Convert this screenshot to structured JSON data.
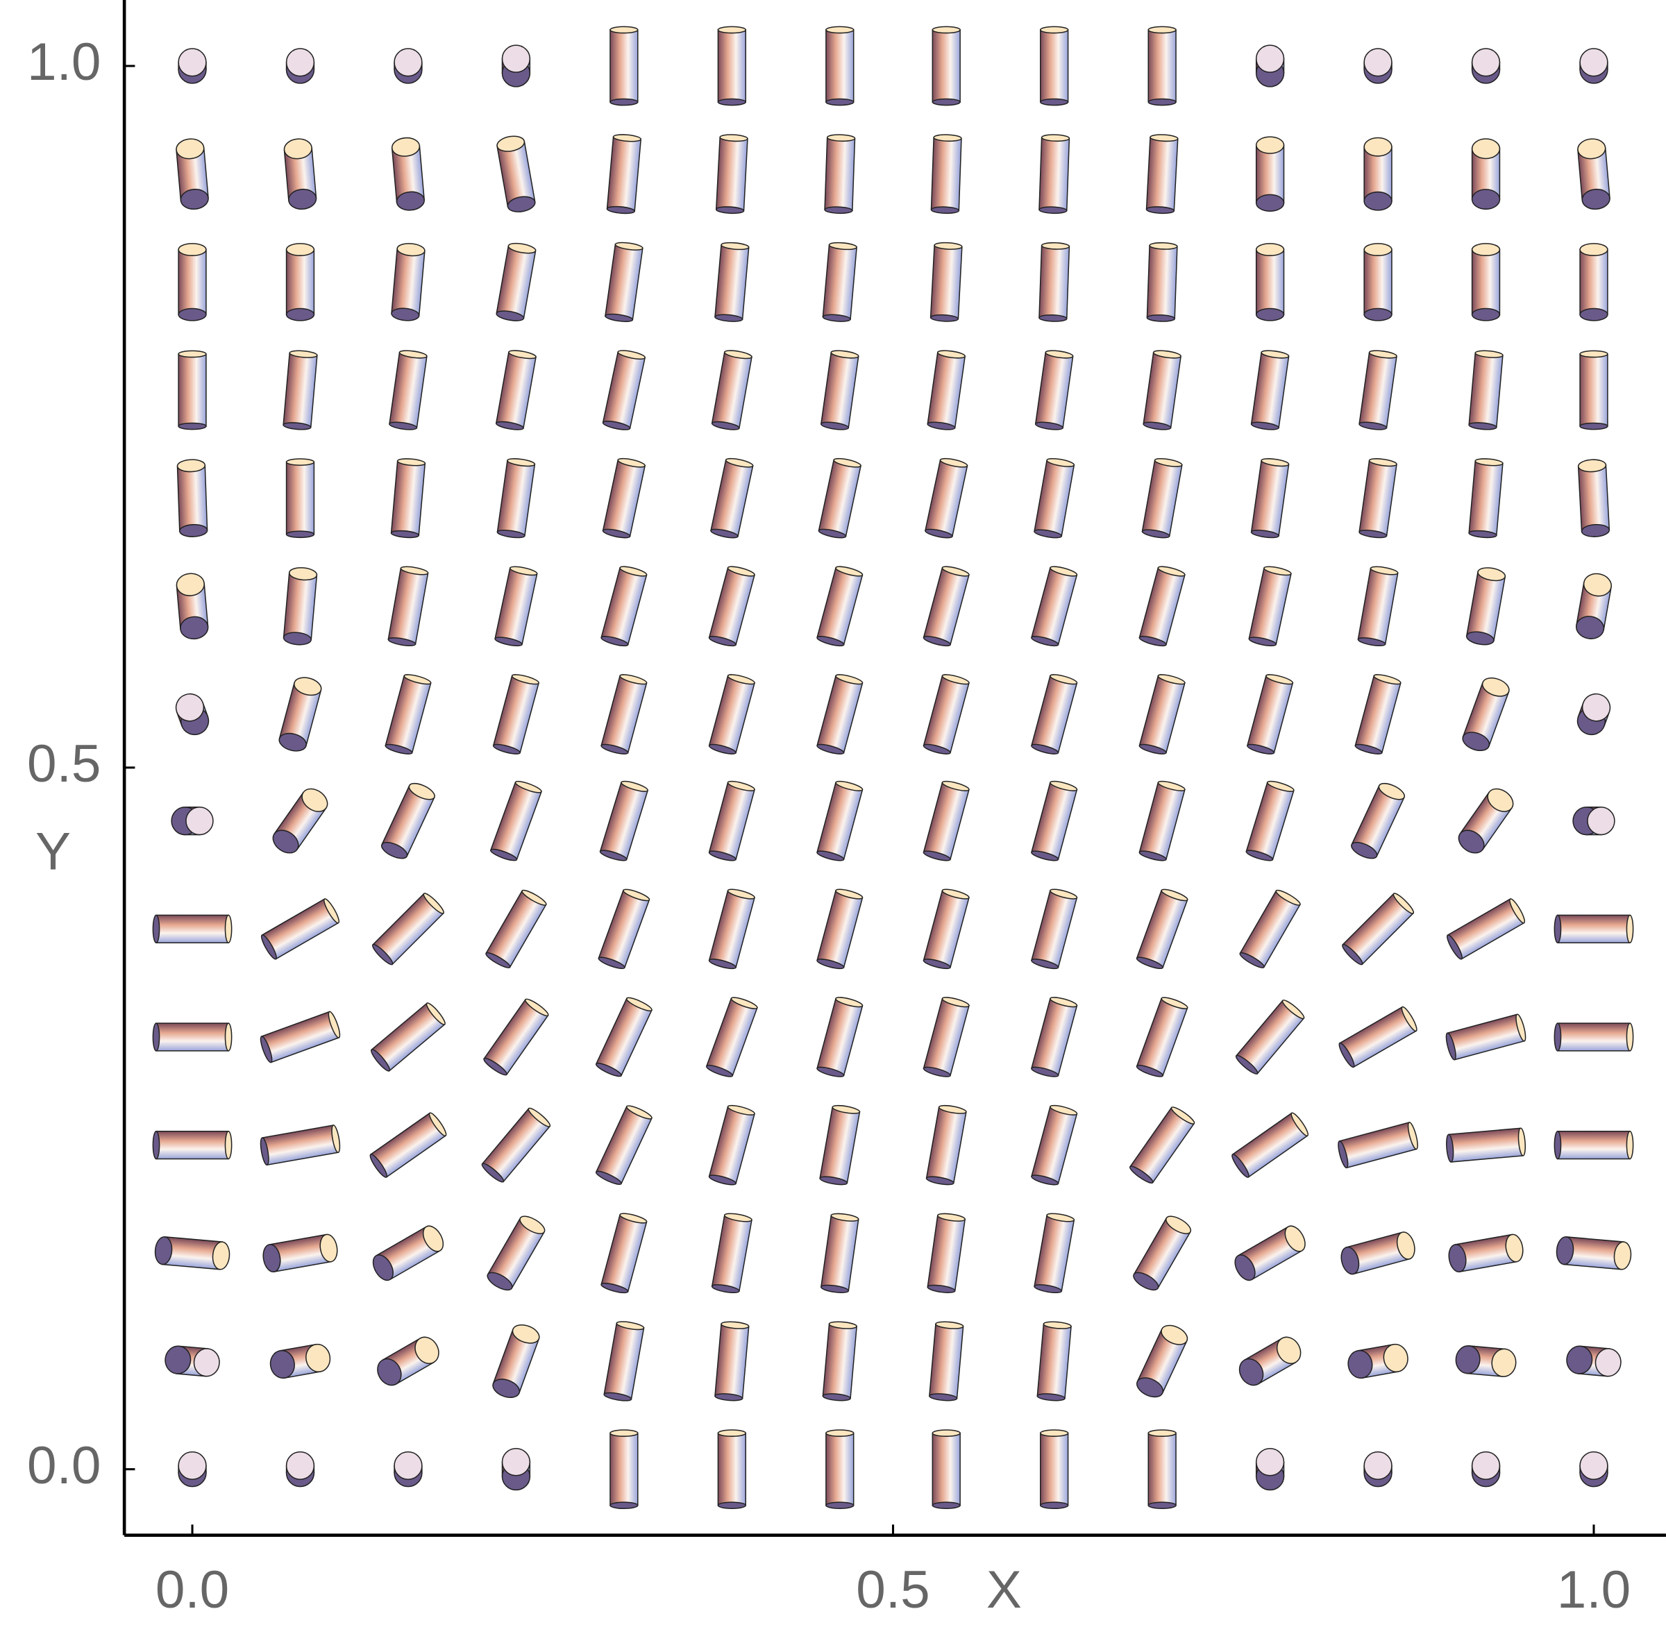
{
  "chart_data": {
    "type": "cylinder-field",
    "xlabel": "X",
    "ylabel": "Y",
    "x": [
      0,
      0.077,
      0.154,
      0.231,
      0.308,
      0.385,
      0.462,
      0.538,
      0.615,
      0.692,
      0.769,
      0.846,
      0.923,
      1
    ],
    "y": [
      0,
      0.077,
      0.154,
      0.231,
      0.308,
      0.385,
      0.462,
      0.538,
      0.615,
      0.692,
      0.769,
      0.846,
      0.923,
      1
    ],
    "angles": [
      [
        0,
        0,
        0,
        0,
        0,
        0,
        0,
        0,
        0,
        0,
        0,
        0,
        0,
        0
      ],
      [
        95,
        80,
        60,
        20,
        10,
        5,
        5,
        5,
        5,
        25,
        60,
        80,
        95,
        95
      ],
      [
        95,
        80,
        60,
        30,
        15,
        10,
        8,
        8,
        10,
        30,
        60,
        75,
        80,
        95
      ],
      [
        90,
        80,
        55,
        40,
        25,
        15,
        10,
        10,
        15,
        35,
        55,
        75,
        85,
        90
      ],
      [
        90,
        70,
        50,
        35,
        25,
        20,
        15,
        15,
        15,
        20,
        40,
        60,
        75,
        90
      ],
      [
        90,
        60,
        45,
        30,
        20,
        15,
        15,
        15,
        15,
        20,
        30,
        45,
        60,
        90
      ],
      [
        90,
        35,
        25,
        20,
        17,
        15,
        15,
        15,
        15,
        15,
        17,
        25,
        35,
        90
      ],
      [
        -20,
        15,
        15,
        15,
        15,
        15,
        15,
        15,
        15,
        15,
        15,
        15,
        20,
        20
      ],
      [
        -5,
        5,
        10,
        12,
        15,
        15,
        15,
        15,
        15,
        15,
        12,
        10,
        10,
        10
      ],
      [
        -2,
        0,
        5,
        8,
        12,
        12,
        12,
        12,
        10,
        10,
        8,
        8,
        5,
        -3
      ],
      [
        0,
        5,
        8,
        10,
        12,
        10,
        8,
        8,
        8,
        8,
        8,
        8,
        5,
        0
      ],
      [
        0,
        0,
        5,
        10,
        8,
        5,
        5,
        3,
        2,
        2,
        0,
        0,
        0,
        0
      ],
      [
        -5,
        -5,
        -5,
        -10,
        5,
        3,
        2,
        2,
        2,
        3,
        0,
        0,
        0,
        -5
      ],
      [
        0,
        0,
        0,
        0,
        0,
        0,
        0,
        0,
        0,
        0,
        0,
        0,
        0,
        0
      ]
    ],
    "lengths": [
      [
        0.1,
        0.1,
        0.1,
        0.2,
        1,
        1,
        1,
        1,
        1,
        1,
        0.2,
        0.1,
        0.1,
        0.1
      ],
      [
        0.4,
        0.5,
        0.6,
        0.8,
        1,
        1,
        1,
        1,
        1,
        0.8,
        0.6,
        0.5,
        0.5,
        0.4
      ],
      [
        0.8,
        0.8,
        0.8,
        0.9,
        1,
        1,
        1,
        1,
        1,
        0.9,
        0.8,
        0.8,
        0.8,
        0.8
      ],
      [
        1,
        1,
        1,
        1,
        1,
        1,
        1,
        1,
        1,
        1,
        1,
        1,
        1,
        1
      ],
      [
        1,
        1,
        1,
        1,
        1,
        1,
        1,
        1,
        1,
        1,
        1,
        1,
        1,
        1
      ],
      [
        1,
        1,
        1,
        1,
        1,
        1,
        1,
        1,
        1,
        1,
        1,
        1,
        1,
        1
      ],
      [
        0.2,
        0.7,
        0.9,
        1,
        1,
        1,
        1,
        1,
        1,
        1,
        1,
        0.9,
        0.7,
        0.2
      ],
      [
        0.2,
        0.8,
        1,
        1,
        1,
        1,
        1,
        1,
        1,
        1,
        1,
        1,
        0.8,
        0.2
      ],
      [
        0.6,
        0.9,
        1,
        1,
        1,
        1,
        1,
        1,
        1,
        1,
        1,
        1,
        0.9,
        0.6
      ],
      [
        0.9,
        1,
        1,
        1,
        1,
        1,
        1,
        1,
        1,
        1,
        1,
        1,
        1,
        0.9
      ],
      [
        1,
        1,
        1,
        1,
        1,
        1,
        1,
        1,
        1,
        1,
        1,
        1,
        1,
        1
      ],
      [
        0.9,
        0.9,
        0.9,
        0.95,
        1,
        1,
        1,
        1,
        1,
        1,
        0.9,
        0.9,
        0.9,
        0.9
      ],
      [
        0.7,
        0.7,
        0.75,
        0.85,
        1,
        1,
        1,
        1,
        1,
        1,
        0.8,
        0.75,
        0.7,
        0.7
      ],
      [
        0.1,
        0.1,
        0.1,
        0.2,
        1,
        1,
        1,
        1,
        1,
        1,
        0.2,
        0.1,
        0.1,
        0.1
      ]
    ],
    "xlim": [
      -0.0485,
      1.0515
    ],
    "ylim": [
      -0.047,
      1.047
    ],
    "xticks": [
      {
        "value": 0,
        "label": "0.0"
      },
      {
        "value": 0.5,
        "label": "0.5"
      },
      {
        "value": 1,
        "label": "1.0"
      }
    ],
    "yticks": [
      {
        "value": 0,
        "label": "0.0"
      },
      {
        "value": 0.5,
        "label": "0.5"
      },
      {
        "value": 1,
        "label": "1.0"
      }
    ]
  }
}
